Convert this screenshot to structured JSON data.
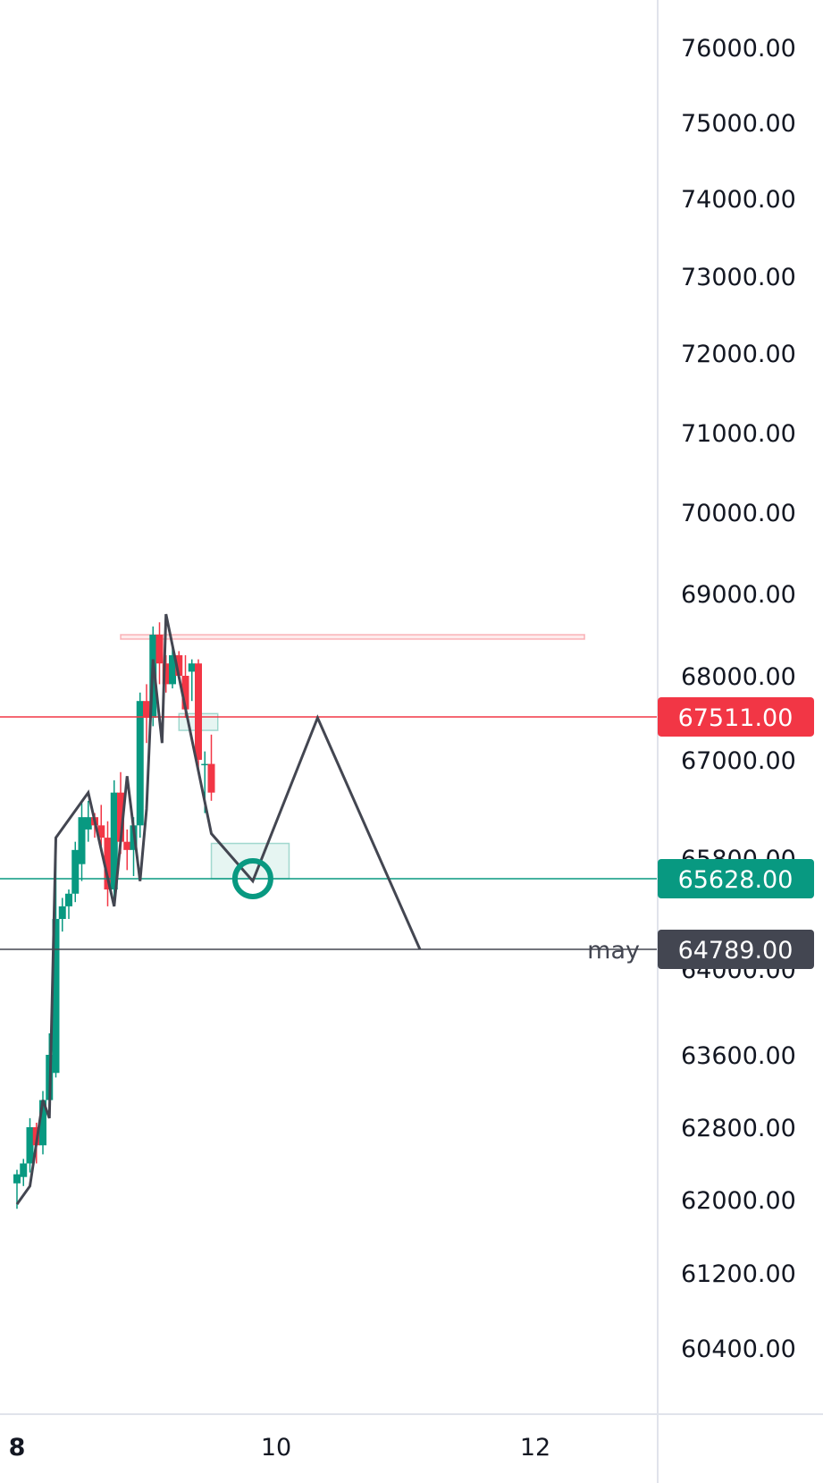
{
  "chart_data": {
    "type": "candlestick",
    "price_axis_ticks": [
      "76000.00",
      "75000.00",
      "74000.00",
      "73000.00",
      "72000.00",
      "71000.00",
      "70000.00",
      "69000.00",
      "68000.00",
      "67000.00",
      "65800.00",
      "64000.00",
      "63600.00",
      "62800.00",
      "62000.00",
      "61200.00",
      "60400.00"
    ],
    "price_axis_tick_values": [
      76000,
      75000,
      74000,
      73000,
      72000,
      71000,
      70000,
      69000,
      68000,
      67000,
      65800,
      64000,
      63600,
      62800,
      62000,
      61200,
      60400
    ],
    "x_ticks": [
      "8",
      "10",
      "12"
    ],
    "x_tick_values": [
      8,
      10,
      12
    ],
    "levels": [
      {
        "label": "67511.00",
        "value": 67511,
        "color": "#f23645"
      },
      {
        "label": "65628.00",
        "value": 65628,
        "color": "#089981"
      },
      {
        "label": "64789.00",
        "value": 64789,
        "color": "#434651"
      }
    ],
    "annotation_text": "may",
    "candles": [
      {
        "x": 8.0,
        "o": 62180,
        "h": 62330,
        "l": 61900,
        "c": 62280
      },
      {
        "x": 8.05,
        "o": 62250,
        "h": 62450,
        "l": 62150,
        "c": 62400
      },
      {
        "x": 8.1,
        "o": 62400,
        "h": 62900,
        "l": 62300,
        "c": 62800
      },
      {
        "x": 8.15,
        "o": 62800,
        "h": 62850,
        "l": 62400,
        "c": 62600
      },
      {
        "x": 8.2,
        "o": 62600,
        "h": 63200,
        "l": 62500,
        "c": 63100
      },
      {
        "x": 8.25,
        "o": 63100,
        "h": 63700,
        "l": 63000,
        "c": 63600
      },
      {
        "x": 8.3,
        "o": 63400,
        "h": 66050,
        "l": 63350,
        "c": 65150
      },
      {
        "x": 8.35,
        "o": 65150,
        "h": 65400,
        "l": 65000,
        "c": 65300
      },
      {
        "x": 8.4,
        "o": 65300,
        "h": 65500,
        "l": 65150,
        "c": 65450
      },
      {
        "x": 8.45,
        "o": 65450,
        "h": 66000,
        "l": 65350,
        "c": 65900
      },
      {
        "x": 8.5,
        "o": 65750,
        "h": 66500,
        "l": 65600,
        "c": 66300
      },
      {
        "x": 8.55,
        "o": 66150,
        "h": 66500,
        "l": 66000,
        "c": 66300
      },
      {
        "x": 8.6,
        "o": 66300,
        "h": 66350,
        "l": 66050,
        "c": 66200
      },
      {
        "x": 8.65,
        "o": 66200,
        "h": 66450,
        "l": 65950,
        "c": 66050
      },
      {
        "x": 8.7,
        "o": 66050,
        "h": 66250,
        "l": 65300,
        "c": 65500
      },
      {
        "x": 8.75,
        "o": 65500,
        "h": 66750,
        "l": 65350,
        "c": 66600
      },
      {
        "x": 8.8,
        "o": 66600,
        "h": 66850,
        "l": 65850,
        "c": 66000
      },
      {
        "x": 8.85,
        "o": 66000,
        "h": 66150,
        "l": 65700,
        "c": 65900
      },
      {
        "x": 8.9,
        "o": 65900,
        "h": 66300,
        "l": 65650,
        "c": 66200
      },
      {
        "x": 8.95,
        "o": 66200,
        "h": 67800,
        "l": 66050,
        "c": 67700
      },
      {
        "x": 9.0,
        "o": 67700,
        "h": 67900,
        "l": 67200,
        "c": 67500
      },
      {
        "x": 9.05,
        "o": 67500,
        "h": 68600,
        "l": 67400,
        "c": 68500
      },
      {
        "x": 9.1,
        "o": 68500,
        "h": 68650,
        "l": 67900,
        "c": 68150
      },
      {
        "x": 9.15,
        "o": 68150,
        "h": 68250,
        "l": 67800,
        "c": 67900
      },
      {
        "x": 9.2,
        "o": 67900,
        "h": 68350,
        "l": 67850,
        "c": 68250
      },
      {
        "x": 9.25,
        "o": 68250,
        "h": 68300,
        "l": 67950,
        "c": 68000
      },
      {
        "x": 9.3,
        "o": 68000,
        "h": 68250,
        "l": 67500,
        "c": 67600
      },
      {
        "x": 9.35,
        "o": 68050,
        "h": 68200,
        "l": 67700,
        "c": 68150
      },
      {
        "x": 9.4,
        "o": 68150,
        "h": 68200,
        "l": 66850,
        "c": 67000
      },
      {
        "x": 9.45,
        "o": 66950,
        "h": 67100,
        "l": 66350,
        "c": 66950
      },
      {
        "x": 9.5,
        "o": 66950,
        "h": 67300,
        "l": 66500,
        "c": 66600
      }
    ],
    "zigzag_path": [
      {
        "x": 8.0,
        "y": 61950
      },
      {
        "x": 8.1,
        "y": 62150
      },
      {
        "x": 8.2,
        "y": 63100
      },
      {
        "x": 8.25,
        "y": 62900
      },
      {
        "x": 8.3,
        "y": 66050
      },
      {
        "x": 8.55,
        "y": 66600
      },
      {
        "x": 8.75,
        "y": 65300
      },
      {
        "x": 8.85,
        "y": 66800
      },
      {
        "x": 8.95,
        "y": 65600
      },
      {
        "x": 9.0,
        "y": 66400
      },
      {
        "x": 9.05,
        "y": 68200
      },
      {
        "x": 9.12,
        "y": 67200
      },
      {
        "x": 9.15,
        "y": 68750
      },
      {
        "x": 9.5,
        "y": 66100
      },
      {
        "x": 9.82,
        "y": 65600
      },
      {
        "x": 10.32,
        "y": 67500
      },
      {
        "x": 11.11,
        "y": 64789
      }
    ],
    "zones": [
      {
        "x1": 8.8,
        "x2": 12.38,
        "y1": 68450,
        "y2": 68500,
        "color": "#f23645"
      },
      {
        "x1": 9.5,
        "x2": 10.1,
        "y1": 65628,
        "y2": 65980,
        "color": "#089981"
      },
      {
        "x1": 9.25,
        "x2": 9.55,
        "y1": 67350,
        "y2": 67550,
        "color": "#089981"
      }
    ],
    "target_marker": {
      "x": 9.82,
      "y": 65628
    },
    "grid": false
  }
}
